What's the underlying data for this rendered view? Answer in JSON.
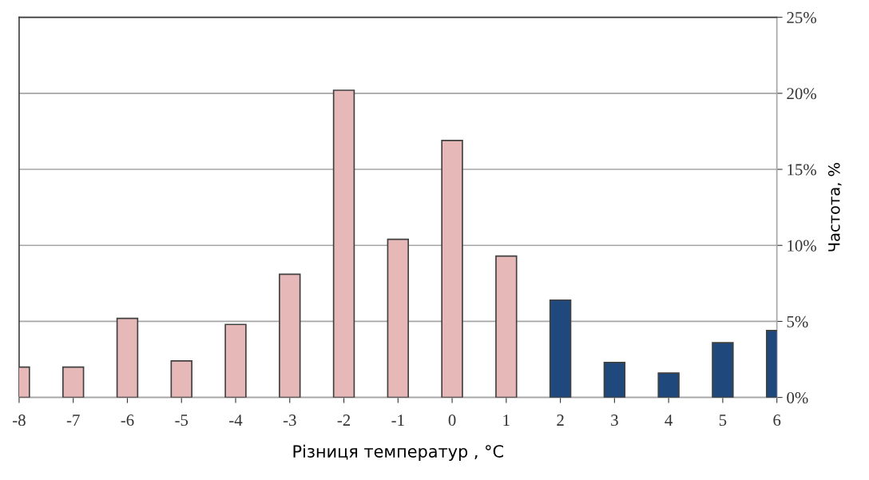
{
  "chart_data": {
    "type": "bar",
    "xlabel": "Різниця температур , °C",
    "ylabel": "Частота, %",
    "x": [
      -8,
      -7,
      -6,
      -5,
      -4,
      -3,
      -2,
      -1,
      0,
      1,
      2,
      3,
      4,
      5,
      6
    ],
    "values": [
      2.0,
      2.0,
      5.2,
      2.4,
      4.8,
      8.1,
      20.2,
      10.4,
      16.9,
      9.3,
      6.4,
      2.3,
      1.6,
      3.6,
      4.4
    ],
    "colors": [
      "#e6b9b8",
      "#e6b9b8",
      "#e6b9b8",
      "#e6b9b8",
      "#e6b9b8",
      "#e6b9b8",
      "#e6b9b8",
      "#e6b9b8",
      "#e6b9b8",
      "#e6b9b8",
      "#1f497d",
      "#1f497d",
      "#1f497d",
      "#1f497d",
      "#1f497d"
    ],
    "xlim": [
      -8,
      6
    ],
    "xticks": [
      -8,
      -7,
      -6,
      -5,
      -4,
      -3,
      -2,
      -1,
      0,
      1,
      2,
      3,
      4,
      5,
      6
    ],
    "ylim": [
      0,
      25
    ],
    "yticks": [
      {
        "value": 0,
        "label": "0%"
      },
      {
        "value": 5,
        "label": "5%"
      },
      {
        "value": 10,
        "label": "10%"
      },
      {
        "value": 15,
        "label": "15%"
      },
      {
        "value": 20,
        "label": "20%"
      },
      {
        "value": 25,
        "label": "25%"
      }
    ],
    "grid": "y"
  }
}
